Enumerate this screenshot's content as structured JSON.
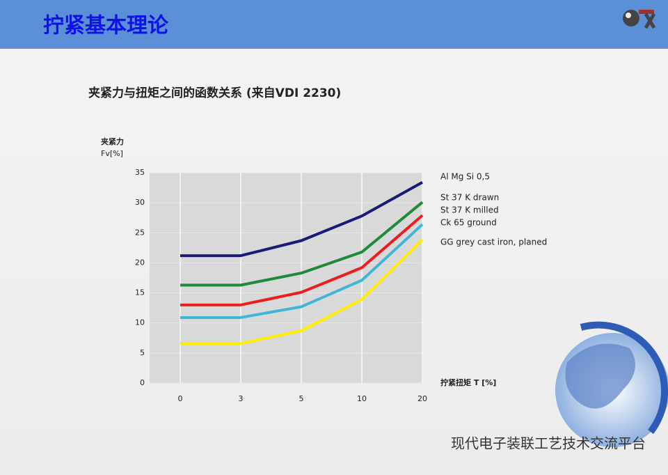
{
  "header": {
    "title": "拧紧基本理论"
  },
  "chart_data": {
    "type": "line",
    "title": "夹紧力与扭矩之间的函数关系 (来自VDI 2230)",
    "ylabel": "夹紧力",
    "ylabel_unit": "Fv[%]",
    "xlabel": "拧紧扭矩 T [%]",
    "categories": [
      "0",
      "3",
      "5",
      "10",
      "20"
    ],
    "series": [
      {
        "name": "Al Mg Si 0,5",
        "color": "#1a1a7a",
        "values": [
          21.2,
          21.2,
          23.7,
          27.8,
          33.4
        ]
      },
      {
        "name": "St 37 K drawn",
        "color": "#1e8a3c",
        "values": [
          16.3,
          16.3,
          18.3,
          21.8,
          30.1
        ]
      },
      {
        "name": "St 37 K milled",
        "color": "#ee1c1c",
        "values": [
          13.0,
          13.0,
          15.1,
          19.2,
          27.9
        ]
      },
      {
        "name": "Ck 65 ground",
        "color": "#3fb6d6",
        "values": [
          10.9,
          10.9,
          12.7,
          17.1,
          26.4
        ]
      },
      {
        "name": "GG grey cast iron, planed",
        "color": "#ffee00",
        "values": [
          6.6,
          6.6,
          8.7,
          13.9,
          23.9
        ]
      }
    ],
    "ylim": [
      0,
      35
    ],
    "yticks": [
      0,
      5,
      10,
      15,
      20,
      25,
      30,
      35
    ],
    "grid": true
  },
  "watermark": "现代电子装联工艺技术交流平台"
}
